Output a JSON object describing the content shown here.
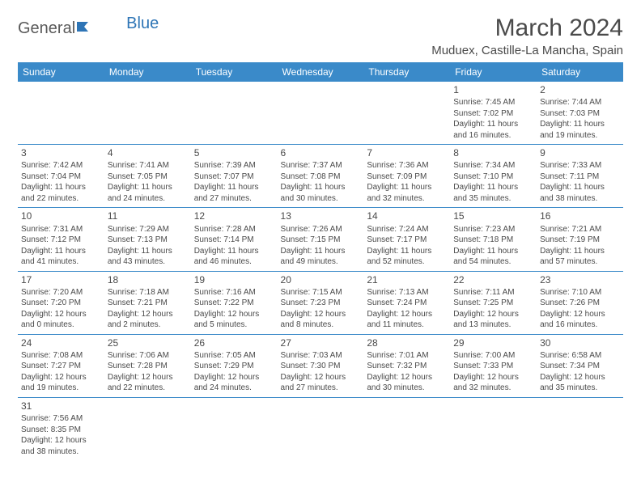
{
  "logo": {
    "text1": "General",
    "text2": "Blue"
  },
  "title": "March 2024",
  "location": "Muduex, Castille-La Mancha, Spain",
  "colors": {
    "header_bg": "#3a8ac9",
    "header_text": "#ffffff",
    "border": "#3a8ac9",
    "text": "#4a4a4a",
    "logo_blue": "#2e75b6",
    "background": "#ffffff"
  },
  "typography": {
    "title_fontsize": 30,
    "location_fontsize": 15,
    "dayheader_fontsize": 12,
    "daynum_fontsize": 12,
    "body_fontsize": 10
  },
  "day_headers": [
    "Sunday",
    "Monday",
    "Tuesday",
    "Wednesday",
    "Thursday",
    "Friday",
    "Saturday"
  ],
  "weeks": [
    [
      null,
      null,
      null,
      null,
      null,
      {
        "n": "1",
        "sr": "Sunrise: 7:45 AM",
        "ss": "Sunset: 7:02 PM",
        "d1": "Daylight: 11 hours",
        "d2": "and 16 minutes."
      },
      {
        "n": "2",
        "sr": "Sunrise: 7:44 AM",
        "ss": "Sunset: 7:03 PM",
        "d1": "Daylight: 11 hours",
        "d2": "and 19 minutes."
      }
    ],
    [
      {
        "n": "3",
        "sr": "Sunrise: 7:42 AM",
        "ss": "Sunset: 7:04 PM",
        "d1": "Daylight: 11 hours",
        "d2": "and 22 minutes."
      },
      {
        "n": "4",
        "sr": "Sunrise: 7:41 AM",
        "ss": "Sunset: 7:05 PM",
        "d1": "Daylight: 11 hours",
        "d2": "and 24 minutes."
      },
      {
        "n": "5",
        "sr": "Sunrise: 7:39 AM",
        "ss": "Sunset: 7:07 PM",
        "d1": "Daylight: 11 hours",
        "d2": "and 27 minutes."
      },
      {
        "n": "6",
        "sr": "Sunrise: 7:37 AM",
        "ss": "Sunset: 7:08 PM",
        "d1": "Daylight: 11 hours",
        "d2": "and 30 minutes."
      },
      {
        "n": "7",
        "sr": "Sunrise: 7:36 AM",
        "ss": "Sunset: 7:09 PM",
        "d1": "Daylight: 11 hours",
        "d2": "and 32 minutes."
      },
      {
        "n": "8",
        "sr": "Sunrise: 7:34 AM",
        "ss": "Sunset: 7:10 PM",
        "d1": "Daylight: 11 hours",
        "d2": "and 35 minutes."
      },
      {
        "n": "9",
        "sr": "Sunrise: 7:33 AM",
        "ss": "Sunset: 7:11 PM",
        "d1": "Daylight: 11 hours",
        "d2": "and 38 minutes."
      }
    ],
    [
      {
        "n": "10",
        "sr": "Sunrise: 7:31 AM",
        "ss": "Sunset: 7:12 PM",
        "d1": "Daylight: 11 hours",
        "d2": "and 41 minutes."
      },
      {
        "n": "11",
        "sr": "Sunrise: 7:29 AM",
        "ss": "Sunset: 7:13 PM",
        "d1": "Daylight: 11 hours",
        "d2": "and 43 minutes."
      },
      {
        "n": "12",
        "sr": "Sunrise: 7:28 AM",
        "ss": "Sunset: 7:14 PM",
        "d1": "Daylight: 11 hours",
        "d2": "and 46 minutes."
      },
      {
        "n": "13",
        "sr": "Sunrise: 7:26 AM",
        "ss": "Sunset: 7:15 PM",
        "d1": "Daylight: 11 hours",
        "d2": "and 49 minutes."
      },
      {
        "n": "14",
        "sr": "Sunrise: 7:24 AM",
        "ss": "Sunset: 7:17 PM",
        "d1": "Daylight: 11 hours",
        "d2": "and 52 minutes."
      },
      {
        "n": "15",
        "sr": "Sunrise: 7:23 AM",
        "ss": "Sunset: 7:18 PM",
        "d1": "Daylight: 11 hours",
        "d2": "and 54 minutes."
      },
      {
        "n": "16",
        "sr": "Sunrise: 7:21 AM",
        "ss": "Sunset: 7:19 PM",
        "d1": "Daylight: 11 hours",
        "d2": "and 57 minutes."
      }
    ],
    [
      {
        "n": "17",
        "sr": "Sunrise: 7:20 AM",
        "ss": "Sunset: 7:20 PM",
        "d1": "Daylight: 12 hours",
        "d2": "and 0 minutes."
      },
      {
        "n": "18",
        "sr": "Sunrise: 7:18 AM",
        "ss": "Sunset: 7:21 PM",
        "d1": "Daylight: 12 hours",
        "d2": "and 2 minutes."
      },
      {
        "n": "19",
        "sr": "Sunrise: 7:16 AM",
        "ss": "Sunset: 7:22 PM",
        "d1": "Daylight: 12 hours",
        "d2": "and 5 minutes."
      },
      {
        "n": "20",
        "sr": "Sunrise: 7:15 AM",
        "ss": "Sunset: 7:23 PM",
        "d1": "Daylight: 12 hours",
        "d2": "and 8 minutes."
      },
      {
        "n": "21",
        "sr": "Sunrise: 7:13 AM",
        "ss": "Sunset: 7:24 PM",
        "d1": "Daylight: 12 hours",
        "d2": "and 11 minutes."
      },
      {
        "n": "22",
        "sr": "Sunrise: 7:11 AM",
        "ss": "Sunset: 7:25 PM",
        "d1": "Daylight: 12 hours",
        "d2": "and 13 minutes."
      },
      {
        "n": "23",
        "sr": "Sunrise: 7:10 AM",
        "ss": "Sunset: 7:26 PM",
        "d1": "Daylight: 12 hours",
        "d2": "and 16 minutes."
      }
    ],
    [
      {
        "n": "24",
        "sr": "Sunrise: 7:08 AM",
        "ss": "Sunset: 7:27 PM",
        "d1": "Daylight: 12 hours",
        "d2": "and 19 minutes."
      },
      {
        "n": "25",
        "sr": "Sunrise: 7:06 AM",
        "ss": "Sunset: 7:28 PM",
        "d1": "Daylight: 12 hours",
        "d2": "and 22 minutes."
      },
      {
        "n": "26",
        "sr": "Sunrise: 7:05 AM",
        "ss": "Sunset: 7:29 PM",
        "d1": "Daylight: 12 hours",
        "d2": "and 24 minutes."
      },
      {
        "n": "27",
        "sr": "Sunrise: 7:03 AM",
        "ss": "Sunset: 7:30 PM",
        "d1": "Daylight: 12 hours",
        "d2": "and 27 minutes."
      },
      {
        "n": "28",
        "sr": "Sunrise: 7:01 AM",
        "ss": "Sunset: 7:32 PM",
        "d1": "Daylight: 12 hours",
        "d2": "and 30 minutes."
      },
      {
        "n": "29",
        "sr": "Sunrise: 7:00 AM",
        "ss": "Sunset: 7:33 PM",
        "d1": "Daylight: 12 hours",
        "d2": "and 32 minutes."
      },
      {
        "n": "30",
        "sr": "Sunrise: 6:58 AM",
        "ss": "Sunset: 7:34 PM",
        "d1": "Daylight: 12 hours",
        "d2": "and 35 minutes."
      }
    ],
    [
      {
        "n": "31",
        "sr": "Sunrise: 7:56 AM",
        "ss": "Sunset: 8:35 PM",
        "d1": "Daylight: 12 hours",
        "d2": "and 38 minutes."
      },
      null,
      null,
      null,
      null,
      null,
      null
    ]
  ]
}
